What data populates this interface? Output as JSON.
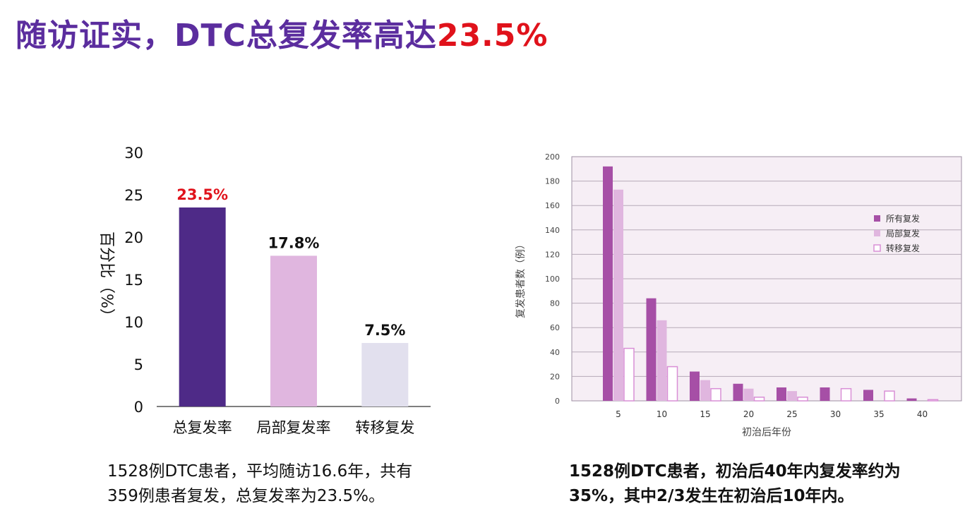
{
  "title": {
    "main": "随访证实，DTC总复发率高达",
    "highlight": "23.5%"
  },
  "colors": {
    "title": "#5b2d9e",
    "highlight": "#e0121b"
  },
  "chart_data": [
    {
      "type": "bar",
      "ylabel": "百分比（%）",
      "ylim": [
        0,
        30
      ],
      "yticks": [
        0,
        5,
        10,
        15,
        20,
        25,
        30
      ],
      "categories": [
        "总复发率",
        "局部复发率",
        "转移复发"
      ],
      "values": [
        23.5,
        17.8,
        7.5
      ],
      "data_labels": [
        "23.5%",
        "17.8%",
        "7.5%"
      ],
      "colors": [
        "#4e2a87",
        "#e0b6df",
        "#e2e0ee"
      ],
      "label_colors": [
        "#e0121b",
        "#111111",
        "#111111"
      ],
      "grid": false
    },
    {
      "type": "bar",
      "xlabel": "初治后年份",
      "ylabel": "复发患者数（例）",
      "ylim": [
        0,
        200
      ],
      "yticks": [
        0,
        20,
        40,
        60,
        80,
        100,
        120,
        140,
        160,
        180,
        200
      ],
      "categories": [
        "5",
        "10",
        "15",
        "20",
        "25",
        "30",
        "35",
        "40"
      ],
      "series": [
        {
          "name": "所有复发",
          "values": [
            192,
            84,
            24,
            14,
            11,
            11,
            9,
            2
          ],
          "color": "#a64fa6",
          "style": "filled"
        },
        {
          "name": "局部复发",
          "values": [
            173,
            66,
            17,
            10,
            8,
            0,
            0,
            0
          ],
          "color": "#e0b6df",
          "style": "filled"
        },
        {
          "name": "转移复发",
          "values": [
            43,
            28,
            10,
            3,
            3,
            10,
            8,
            1
          ],
          "color": "#d98fd6",
          "style": "outline"
        }
      ],
      "legend_position": "right",
      "grid": true
    }
  ],
  "captions": {
    "left_line1": "1528例DTC患者，平均随访16.6年，共有",
    "left_line2": "359例患者复发，总复发率为23.5%。",
    "right_line1": "1528例DTC患者，初治后40年内复发率约为",
    "right_line2": "35%，其中2/3发生在初治后10年内。"
  }
}
